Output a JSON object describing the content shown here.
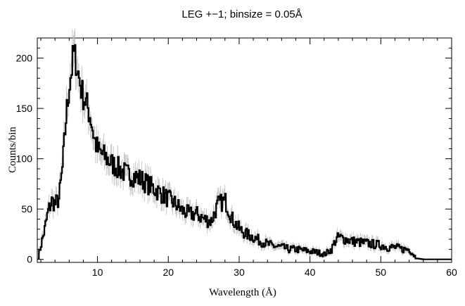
{
  "chart_data": {
    "type": "line",
    "title": "LEG +−1; binsize = 0.05Å",
    "xlabel": "Wavelength (Å)",
    "ylabel": "Counts/bin",
    "xlim": [
      1.5,
      60
    ],
    "ylim": [
      -3,
      220
    ],
    "x_ticks": [
      10,
      20,
      30,
      40,
      50,
      60
    ],
    "y_ticks": [
      0,
      50,
      100,
      150,
      200
    ],
    "grid": false,
    "series": [
      {
        "style": "black histogram line with grey error bars",
        "x": [
          1.6,
          2.0,
          2.5,
          3.0,
          3.5,
          4.0,
          4.5,
          5.0,
          5.5,
          6.0,
          6.3,
          6.6,
          6.9,
          7.2,
          7.5,
          7.8,
          8.2,
          8.6,
          9.0,
          9.5,
          10.0,
          11.0,
          12.0,
          13.0,
          14.0,
          15.0,
          16.0,
          17.0,
          18.0,
          19.0,
          20.0,
          21.0,
          22.0,
          23.0,
          24.0,
          25.0,
          26.0,
          27.0,
          28.0,
          29.0,
          30.0,
          31.0,
          32.0,
          33.0,
          34.0,
          35.0,
          36.0,
          37.0,
          38.0,
          39.0,
          40.0,
          41.0,
          42.0,
          43.0,
          43.5,
          44.0,
          45.0,
          46.0,
          47.0,
          48.0,
          49.0,
          50.0,
          51.0,
          52.0,
          53.0,
          54.0,
          55.0,
          56.0,
          57.0,
          58.0,
          59.0,
          60.0
        ],
        "y": [
          3,
          15,
          30,
          48,
          58,
          55,
          60,
          90,
          140,
          175,
          190,
          205,
          198,
          185,
          175,
          165,
          158,
          150,
          140,
          120,
          108,
          102,
          95,
          90,
          85,
          83,
          80,
          75,
          70,
          65,
          60,
          55,
          48,
          45,
          45,
          40,
          38,
          55,
          58,
          40,
          30,
          25,
          22,
          18,
          15,
          13,
          12,
          10,
          10,
          9,
          8,
          7,
          5,
          10,
          18,
          22,
          20,
          18,
          17,
          16,
          15,
          14,
          12,
          12,
          10,
          10,
          1,
          0,
          0,
          0,
          0,
          0
        ]
      }
    ]
  }
}
